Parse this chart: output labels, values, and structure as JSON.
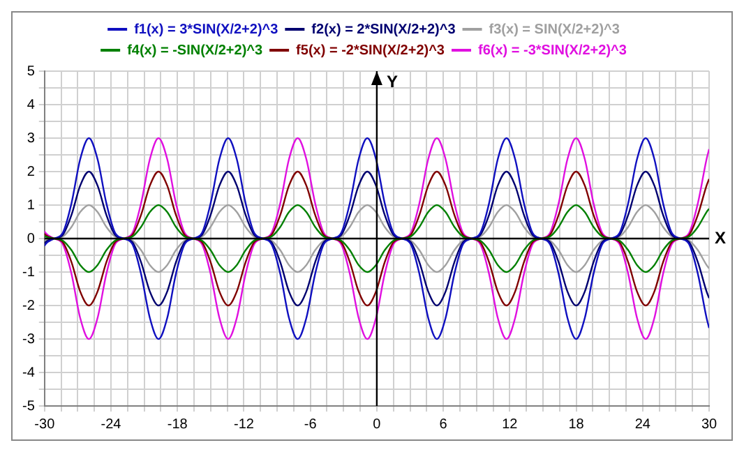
{
  "chart_data": {
    "type": "line",
    "xlabel": "X",
    "ylabel": "Y",
    "legend": "top",
    "grid": true,
    "marker": "none",
    "line_style": "solid",
    "xlim": [
      -30,
      30
    ],
    "ylim": [
      -5,
      5
    ],
    "xticks": [
      -30,
      {
        "value": -28.5,
        "label": null
      },
      {
        "value": -27,
        "label": null
      },
      {
        "value": -25.5,
        "label": null
      },
      -24,
      {
        "value": -22.5,
        "label": null
      },
      {
        "value": -21,
        "label": null
      },
      {
        "value": -19.5,
        "label": null
      },
      -18,
      {
        "value": -16.5,
        "label": null
      },
      {
        "value": -15,
        "label": null
      },
      {
        "value": -13.5,
        "label": null
      },
      -12,
      {
        "value": -10.5,
        "label": null
      },
      {
        "value": -9,
        "label": null
      },
      {
        "value": -7.5,
        "label": null
      },
      -6,
      {
        "value": -4.5,
        "label": null
      },
      {
        "value": -3,
        "label": null
      },
      {
        "value": -1.5,
        "label": null
      },
      0,
      {
        "value": 1.5,
        "label": null
      },
      {
        "value": 3,
        "label": null
      },
      {
        "value": 4.5,
        "label": null
      },
      6,
      {
        "value": 7.5,
        "label": null
      },
      {
        "value": 9,
        "label": null
      },
      {
        "value": 10.5,
        "label": null
      },
      12,
      {
        "value": 13.5,
        "label": null
      },
      {
        "value": 15,
        "label": null
      },
      {
        "value": 16.5,
        "label": null
      },
      18,
      {
        "value": 19.5,
        "label": null
      },
      {
        "value": 21,
        "label": null
      },
      {
        "value": 22.5,
        "label": null
      },
      24,
      {
        "value": 25.5,
        "label": null
      },
      {
        "value": 27,
        "label": null
      },
      {
        "value": 28.5,
        "label": null
      },
      30
    ],
    "yticks": [
      -5,
      {
        "value": -4.5,
        "label": null
      },
      -4,
      {
        "value": -3.5,
        "label": null
      },
      -3,
      {
        "value": -2.5,
        "label": null
      },
      -2,
      {
        "value": -1.5,
        "label": null
      },
      -1,
      {
        "value": -0.5,
        "label": null
      },
      0,
      {
        "value": 0.5,
        "label": null
      },
      1,
      {
        "value": 1.5,
        "label": null
      },
      2,
      {
        "value": 2.5,
        "label": null
      },
      3,
      {
        "value": 3.5,
        "label": null
      },
      4,
      {
        "value": 4.5,
        "label": null
      },
      5
    ],
    "x": [
      -30,
      -29.92,
      -29.13,
      -28.35,
      -27.56,
      -26.78,
      -25.99,
      -25.21,
      -24.42,
      -23.63,
      -22.85,
      -22.06,
      -21.28,
      -20.49,
      -19.71,
      -18.92,
      -18.14,
      -17.35,
      -16.57,
      -15.78,
      -15.0,
      -14.21,
      -13.42,
      -12.64,
      -11.85,
      -11.07,
      -10.28,
      -9.5,
      -8.71,
      -7.93,
      -7.14,
      -6.36,
      -5.57,
      -4.79,
      -4,
      -3.21,
      -2.43,
      -1.64,
      -0.86,
      -0.07,
      0.71,
      1.5,
      2.28,
      3.07,
      3.85,
      4.64,
      5.42,
      6.21,
      7.0,
      7.78,
      8.57,
      9.35,
      10.14,
      10.92,
      11.71,
      12.49,
      13.28,
      14.06,
      14.85,
      15.64,
      16.42,
      17.21,
      17.99,
      18.78,
      19.56,
      20.35,
      21.13,
      21.92,
      22.7,
      23.49,
      24.27,
      25.06,
      25.84,
      26.63,
      27.42,
      28.2,
      28.99,
      29.77,
      30
    ],
    "series": [
      {
        "name": "f1(x) = 3*SIN(X/2+2)^3",
        "color": "#1010c0",
        "values": [
          -0.22,
          -0.17,
          0,
          0.17,
          1.06,
          2.37,
          3,
          2.37,
          1.06,
          0.17,
          0,
          -0.17,
          -1.06,
          -2.37,
          -3,
          -2.37,
          -1.06,
          -0.17,
          0,
          0.17,
          1.06,
          2.37,
          3,
          2.37,
          1.06,
          0.17,
          0,
          -0.17,
          -1.06,
          -2.37,
          -3,
          -2.37,
          -1.06,
          -0.17,
          0,
          0.17,
          1.06,
          2.37,
          3,
          2.37,
          1.06,
          0.17,
          0,
          -0.17,
          -1.06,
          -2.37,
          -3,
          -2.37,
          -1.06,
          -0.17,
          0,
          0.17,
          1.06,
          2.37,
          3,
          2.37,
          1.06,
          0.17,
          0,
          -0.17,
          -1.06,
          -2.37,
          -3,
          -2.37,
          -1.06,
          -0.17,
          0,
          0.17,
          1.06,
          2.37,
          3,
          2.37,
          1.06,
          0.17,
          0,
          -0.17,
          -1.06,
          -2.37,
          -2.67
        ]
      },
      {
        "name": "f2(x) = 2*SIN(X/2+2)^3",
        "color": "#000070",
        "values": [
          -0.15,
          -0.11,
          0,
          0.11,
          0.71,
          1.58,
          2,
          1.58,
          0.71,
          0.11,
          0,
          -0.11,
          -0.71,
          -1.58,
          -2,
          -1.58,
          -0.71,
          -0.11,
          0,
          0.11,
          0.71,
          1.58,
          2,
          1.58,
          0.71,
          0.11,
          0,
          -0.11,
          -0.71,
          -1.58,
          -2,
          -1.58,
          -0.71,
          -0.11,
          0,
          0.11,
          0.71,
          1.58,
          2,
          1.58,
          0.71,
          0.11,
          0,
          -0.11,
          -0.71,
          -1.58,
          -2,
          -1.58,
          -0.71,
          -0.11,
          0,
          0.11,
          0.71,
          1.58,
          2,
          1.58,
          0.71,
          0.11,
          0,
          -0.11,
          -0.71,
          -1.58,
          -2,
          -1.58,
          -0.71,
          -0.11,
          0,
          0.11,
          0.71,
          1.58,
          2,
          1.58,
          0.71,
          0.11,
          0,
          -0.11,
          -0.71,
          -1.58,
          -1.78
        ]
      },
      {
        "name": "f3(x) = SIN(X/2+2)^3",
        "color": "#a0a0a0",
        "values": [
          -0.07,
          -0.06,
          0,
          0.06,
          0.35,
          0.79,
          1,
          0.79,
          0.35,
          0.06,
          0,
          -0.06,
          -0.35,
          -0.79,
          -1,
          -0.79,
          -0.35,
          -0.06,
          0,
          0.06,
          0.35,
          0.79,
          1,
          0.79,
          0.35,
          0.06,
          0,
          -0.06,
          -0.35,
          -0.79,
          -1,
          -0.79,
          -0.35,
          -0.06,
          0,
          0.06,
          0.35,
          0.79,
          1,
          0.79,
          0.35,
          0.06,
          0,
          -0.06,
          -0.35,
          -0.79,
          -1,
          -0.79,
          -0.35,
          -0.06,
          0,
          0.06,
          0.35,
          0.79,
          1,
          0.79,
          0.35,
          0.06,
          0,
          -0.06,
          -0.35,
          -0.79,
          -1,
          -0.79,
          -0.35,
          -0.06,
          0,
          0.06,
          0.35,
          0.79,
          1,
          0.79,
          0.35,
          0.06,
          0,
          -0.06,
          -0.35,
          -0.79,
          -0.89
        ]
      },
      {
        "name": "f4(x) = -SIN(X/2+2)^3",
        "color": "#008000",
        "values": [
          0.07,
          0.06,
          0,
          -0.06,
          -0.35,
          -0.79,
          -1,
          -0.79,
          -0.35,
          -0.06,
          0,
          0.06,
          0.35,
          0.79,
          1,
          0.79,
          0.35,
          0.06,
          0,
          -0.06,
          -0.35,
          -0.79,
          -1,
          -0.79,
          -0.35,
          -0.06,
          0,
          0.06,
          0.35,
          0.79,
          1,
          0.79,
          0.35,
          0.06,
          0,
          -0.06,
          -0.35,
          -0.79,
          -1,
          -0.79,
          -0.35,
          -0.06,
          0,
          0.06,
          0.35,
          0.79,
          1,
          0.79,
          0.35,
          0.06,
          0,
          -0.06,
          -0.35,
          -0.79,
          -1,
          -0.79,
          -0.35,
          -0.06,
          0,
          0.06,
          0.35,
          0.79,
          1,
          0.79,
          0.35,
          0.06,
          0,
          -0.06,
          -0.35,
          -0.79,
          -1,
          -0.79,
          -0.35,
          -0.06,
          0,
          0.06,
          0.35,
          0.79,
          0.89
        ]
      },
      {
        "name": "f5(x) = -2*SIN(X/2+2)^3",
        "color": "#800000",
        "values": [
          0.15,
          0.11,
          0,
          -0.11,
          -0.71,
          -1.58,
          -2,
          -1.58,
          -0.71,
          -0.11,
          0,
          0.11,
          0.71,
          1.58,
          2,
          1.58,
          0.71,
          0.11,
          0,
          -0.11,
          -0.71,
          -1.58,
          -2,
          -1.58,
          -0.71,
          -0.11,
          0,
          0.11,
          0.71,
          1.58,
          2,
          1.58,
          0.71,
          0.11,
          0,
          -0.11,
          -0.71,
          -1.58,
          -2,
          -1.58,
          -0.71,
          -0.11,
          0,
          0.11,
          0.71,
          1.58,
          2,
          1.58,
          0.71,
          0.11,
          0,
          -0.11,
          -0.71,
          -1.58,
          -2,
          -1.58,
          -0.71,
          -0.11,
          0,
          0.11,
          0.71,
          1.58,
          2,
          1.58,
          0.71,
          0.11,
          0,
          -0.11,
          -0.71,
          -1.58,
          -2,
          -1.58,
          -0.71,
          -0.11,
          0,
          0.11,
          0.71,
          1.58,
          1.78
        ]
      },
      {
        "name": "f6(x) = -3*SIN(X/2+2)^3",
        "color": "#e010e0",
        "values": [
          0.22,
          0.17,
          0,
          -0.17,
          -1.06,
          -2.37,
          -3,
          -2.37,
          -1.06,
          -0.17,
          0,
          0.17,
          1.06,
          2.37,
          3,
          2.37,
          1.06,
          0.17,
          0,
          -0.17,
          -1.06,
          -2.37,
          -3,
          -2.37,
          -1.06,
          -0.17,
          0,
          0.17,
          1.06,
          2.37,
          3,
          2.37,
          1.06,
          0.17,
          0,
          -0.17,
          -1.06,
          -2.37,
          -3,
          -2.37,
          -1.06,
          -0.17,
          0,
          0.17,
          1.06,
          2.37,
          3,
          2.37,
          1.06,
          0.17,
          0,
          -0.17,
          -1.06,
          -2.37,
          -3,
          -2.37,
          -1.06,
          -0.17,
          0,
          0.17,
          1.06,
          2.37,
          3,
          2.37,
          1.06,
          0.17,
          0,
          -0.17,
          -1.06,
          -2.37,
          -3,
          -2.37,
          -1.06,
          -0.17,
          0,
          0.17,
          1.06,
          2.37,
          2.67
        ]
      }
    ]
  }
}
